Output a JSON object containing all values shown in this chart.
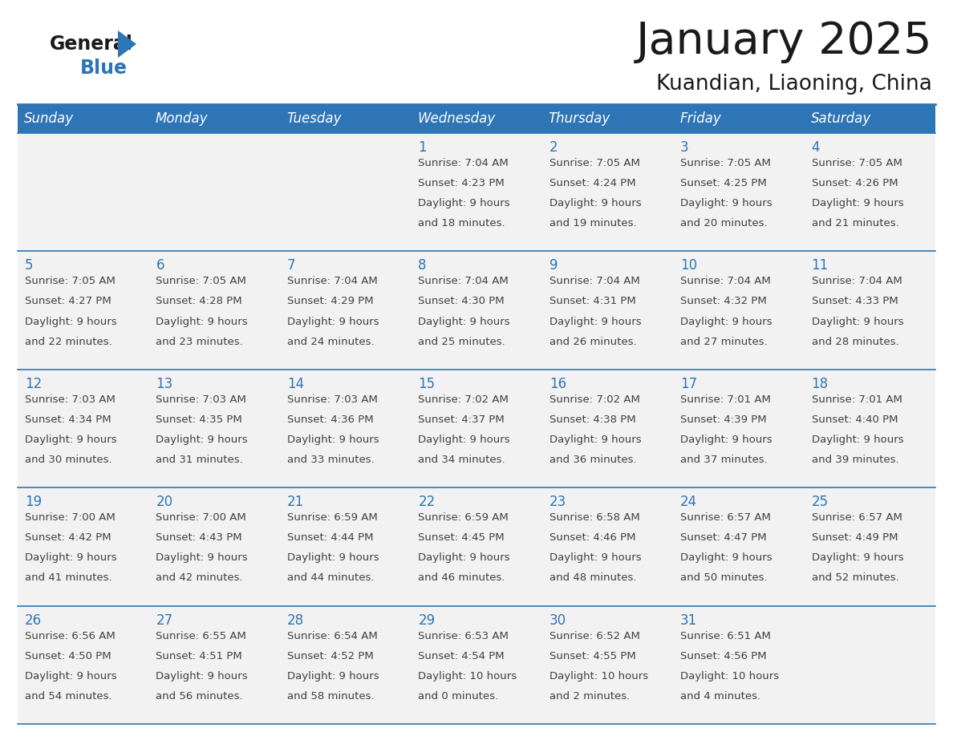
{
  "title": "January 2025",
  "subtitle": "Kuandian, Liaoning, China",
  "days_of_week": [
    "Sunday",
    "Monday",
    "Tuesday",
    "Wednesday",
    "Thursday",
    "Friday",
    "Saturday"
  ],
  "header_bg": "#2E75B6",
  "header_text": "#FFFFFF",
  "row_bg": "#F2F2F2",
  "cell_text_color": "#404040",
  "day_number_color": "#2E75B6",
  "border_color": "#2E75B6",
  "title_color": "#1a1a1a",
  "subtitle_color": "#1a1a1a",
  "logo_general_color": "#1a1a1a",
  "logo_blue_color": "#2E75B6",
  "logo_triangle_color": "#2E75B6",
  "calendar_data": [
    {
      "day": 1,
      "col": 3,
      "row": 0,
      "sunrise": "7:04 AM",
      "sunset": "4:23 PM",
      "daylight_h": "9 hours",
      "daylight_m": "and 18 minutes."
    },
    {
      "day": 2,
      "col": 4,
      "row": 0,
      "sunrise": "7:05 AM",
      "sunset": "4:24 PM",
      "daylight_h": "9 hours",
      "daylight_m": "and 19 minutes."
    },
    {
      "day": 3,
      "col": 5,
      "row": 0,
      "sunrise": "7:05 AM",
      "sunset": "4:25 PM",
      "daylight_h": "9 hours",
      "daylight_m": "and 20 minutes."
    },
    {
      "day": 4,
      "col": 6,
      "row": 0,
      "sunrise": "7:05 AM",
      "sunset": "4:26 PM",
      "daylight_h": "9 hours",
      "daylight_m": "and 21 minutes."
    },
    {
      "day": 5,
      "col": 0,
      "row": 1,
      "sunrise": "7:05 AM",
      "sunset": "4:27 PM",
      "daylight_h": "9 hours",
      "daylight_m": "and 22 minutes."
    },
    {
      "day": 6,
      "col": 1,
      "row": 1,
      "sunrise": "7:05 AM",
      "sunset": "4:28 PM",
      "daylight_h": "9 hours",
      "daylight_m": "and 23 minutes."
    },
    {
      "day": 7,
      "col": 2,
      "row": 1,
      "sunrise": "7:04 AM",
      "sunset": "4:29 PM",
      "daylight_h": "9 hours",
      "daylight_m": "and 24 minutes."
    },
    {
      "day": 8,
      "col": 3,
      "row": 1,
      "sunrise": "7:04 AM",
      "sunset": "4:30 PM",
      "daylight_h": "9 hours",
      "daylight_m": "and 25 minutes."
    },
    {
      "day": 9,
      "col": 4,
      "row": 1,
      "sunrise": "7:04 AM",
      "sunset": "4:31 PM",
      "daylight_h": "9 hours",
      "daylight_m": "and 26 minutes."
    },
    {
      "day": 10,
      "col": 5,
      "row": 1,
      "sunrise": "7:04 AM",
      "sunset": "4:32 PM",
      "daylight_h": "9 hours",
      "daylight_m": "and 27 minutes."
    },
    {
      "day": 11,
      "col": 6,
      "row": 1,
      "sunrise": "7:04 AM",
      "sunset": "4:33 PM",
      "daylight_h": "9 hours",
      "daylight_m": "and 28 minutes."
    },
    {
      "day": 12,
      "col": 0,
      "row": 2,
      "sunrise": "7:03 AM",
      "sunset": "4:34 PM",
      "daylight_h": "9 hours",
      "daylight_m": "and 30 minutes."
    },
    {
      "day": 13,
      "col": 1,
      "row": 2,
      "sunrise": "7:03 AM",
      "sunset": "4:35 PM",
      "daylight_h": "9 hours",
      "daylight_m": "and 31 minutes."
    },
    {
      "day": 14,
      "col": 2,
      "row": 2,
      "sunrise": "7:03 AM",
      "sunset": "4:36 PM",
      "daylight_h": "9 hours",
      "daylight_m": "and 33 minutes."
    },
    {
      "day": 15,
      "col": 3,
      "row": 2,
      "sunrise": "7:02 AM",
      "sunset": "4:37 PM",
      "daylight_h": "9 hours",
      "daylight_m": "and 34 minutes."
    },
    {
      "day": 16,
      "col": 4,
      "row": 2,
      "sunrise": "7:02 AM",
      "sunset": "4:38 PM",
      "daylight_h": "9 hours",
      "daylight_m": "and 36 minutes."
    },
    {
      "day": 17,
      "col": 5,
      "row": 2,
      "sunrise": "7:01 AM",
      "sunset": "4:39 PM",
      "daylight_h": "9 hours",
      "daylight_m": "and 37 minutes."
    },
    {
      "day": 18,
      "col": 6,
      "row": 2,
      "sunrise": "7:01 AM",
      "sunset": "4:40 PM",
      "daylight_h": "9 hours",
      "daylight_m": "and 39 minutes."
    },
    {
      "day": 19,
      "col": 0,
      "row": 3,
      "sunrise": "7:00 AM",
      "sunset": "4:42 PM",
      "daylight_h": "9 hours",
      "daylight_m": "and 41 minutes."
    },
    {
      "day": 20,
      "col": 1,
      "row": 3,
      "sunrise": "7:00 AM",
      "sunset": "4:43 PM",
      "daylight_h": "9 hours",
      "daylight_m": "and 42 minutes."
    },
    {
      "day": 21,
      "col": 2,
      "row": 3,
      "sunrise": "6:59 AM",
      "sunset": "4:44 PM",
      "daylight_h": "9 hours",
      "daylight_m": "and 44 minutes."
    },
    {
      "day": 22,
      "col": 3,
      "row": 3,
      "sunrise": "6:59 AM",
      "sunset": "4:45 PM",
      "daylight_h": "9 hours",
      "daylight_m": "and 46 minutes."
    },
    {
      "day": 23,
      "col": 4,
      "row": 3,
      "sunrise": "6:58 AM",
      "sunset": "4:46 PM",
      "daylight_h": "9 hours",
      "daylight_m": "and 48 minutes."
    },
    {
      "day": 24,
      "col": 5,
      "row": 3,
      "sunrise": "6:57 AM",
      "sunset": "4:47 PM",
      "daylight_h": "9 hours",
      "daylight_m": "and 50 minutes."
    },
    {
      "day": 25,
      "col": 6,
      "row": 3,
      "sunrise": "6:57 AM",
      "sunset": "4:49 PM",
      "daylight_h": "9 hours",
      "daylight_m": "and 52 minutes."
    },
    {
      "day": 26,
      "col": 0,
      "row": 4,
      "sunrise": "6:56 AM",
      "sunset": "4:50 PM",
      "daylight_h": "9 hours",
      "daylight_m": "and 54 minutes."
    },
    {
      "day": 27,
      "col": 1,
      "row": 4,
      "sunrise": "6:55 AM",
      "sunset": "4:51 PM",
      "daylight_h": "9 hours",
      "daylight_m": "and 56 minutes."
    },
    {
      "day": 28,
      "col": 2,
      "row": 4,
      "sunrise": "6:54 AM",
      "sunset": "4:52 PM",
      "daylight_h": "9 hours",
      "daylight_m": "and 58 minutes."
    },
    {
      "day": 29,
      "col": 3,
      "row": 4,
      "sunrise": "6:53 AM",
      "sunset": "4:54 PM",
      "daylight_h": "10 hours",
      "daylight_m": "and 0 minutes."
    },
    {
      "day": 30,
      "col": 4,
      "row": 4,
      "sunrise": "6:52 AM",
      "sunset": "4:55 PM",
      "daylight_h": "10 hours",
      "daylight_m": "and 2 minutes."
    },
    {
      "day": 31,
      "col": 5,
      "row": 4,
      "sunrise": "6:51 AM",
      "sunset": "4:56 PM",
      "daylight_h": "10 hours",
      "daylight_m": "and 4 minutes."
    }
  ]
}
